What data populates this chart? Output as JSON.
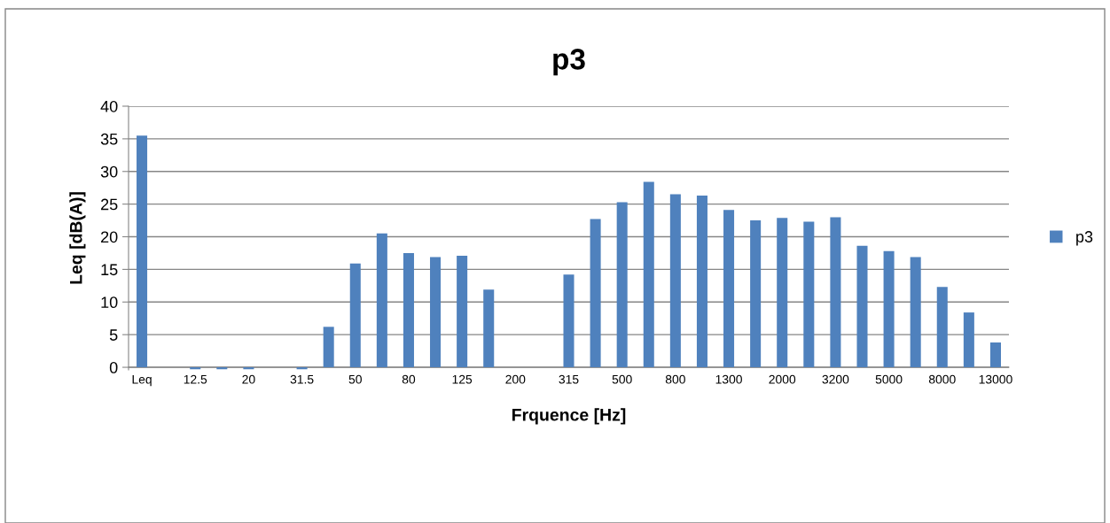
{
  "chart_data": {
    "type": "bar",
    "title": "p3",
    "xlabel": "Frquence [Hz]",
    "ylabel": "Leq [dB(A)]",
    "categories": [
      "Leq",
      null,
      "12.5",
      null,
      "20",
      null,
      "31.5",
      null,
      "50",
      null,
      "80",
      null,
      "125",
      null,
      "200",
      null,
      "315",
      null,
      "500",
      null,
      "800",
      null,
      "1300",
      null,
      "2000",
      null,
      "3200",
      null,
      "5000",
      null,
      "8000",
      null,
      "13000"
    ],
    "series": [
      {
        "name": "p3",
        "color": "#4f81bd",
        "values": [
          35.5,
          0,
          -0.3,
          -0.3,
          -0.3,
          0,
          -0.3,
          6.2,
          15.9,
          20.5,
          17.5,
          16.9,
          17.1,
          11.9,
          0,
          0,
          14.2,
          22.7,
          25.3,
          28.4,
          26.5,
          26.3,
          24.1,
          22.5,
          22.9,
          22.3,
          23.0,
          18.6,
          17.8,
          16.9,
          12.3,
          8.4,
          3.8
        ]
      }
    ],
    "ylim": [
      -0.4,
      40
    ],
    "yticks": [
      0,
      5,
      10,
      15,
      20,
      25,
      30,
      35,
      40
    ],
    "grid": "y",
    "legend": "right"
  }
}
